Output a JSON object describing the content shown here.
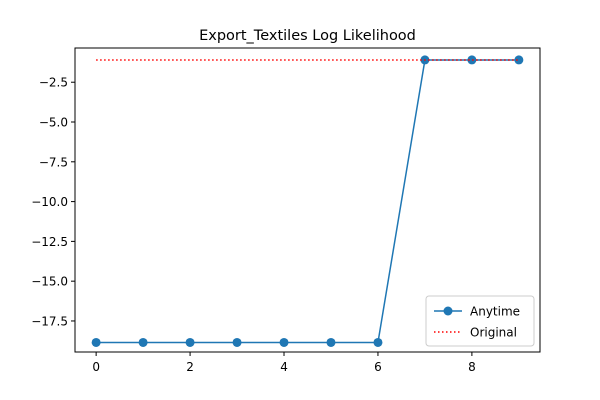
{
  "chart_data": {
    "type": "line",
    "title": "Export_Textiles Log Likelihood",
    "xlabel": "",
    "ylabel": "",
    "x": [
      0,
      1,
      2,
      3,
      4,
      5,
      6,
      7,
      9,
      8
    ],
    "x_sorted": [
      0,
      1,
      2,
      3,
      4,
      5,
      6,
      7,
      8,
      9
    ],
    "xlim": [
      -0.45,
      9.45
    ],
    "ylim": [
      -19.45,
      -0.35
    ],
    "xticks": [
      0,
      2,
      4,
      6,
      8
    ],
    "xtick_labels": [
      "0",
      "2",
      "4",
      "6",
      "8"
    ],
    "yticks": [
      -17.5,
      -15.0,
      -12.5,
      -10.0,
      -7.5,
      -5.0,
      -2.5
    ],
    "ytick_labels": [
      "−17.5",
      "−15.0",
      "−12.5",
      "−10.0",
      "−7.5",
      "−5.0",
      "−2.5"
    ],
    "grid": false,
    "legend_position": "lower-right",
    "series": [
      {
        "name": "Anytime",
        "style": "solid-line-with-circle-markers",
        "color": "#1f77b4",
        "x": [
          0,
          1,
          2,
          3,
          4,
          5,
          6,
          7,
          8,
          9
        ],
        "values": [
          -18.85,
          -18.85,
          -18.85,
          -18.85,
          -18.85,
          -18.85,
          -18.85,
          -1.1,
          -1.1,
          -1.1
        ]
      },
      {
        "name": "Original",
        "style": "dotted-line",
        "color": "#ff0000",
        "x": [
          0,
          9
        ],
        "values": [
          -1.1,
          -1.1
        ]
      }
    ]
  }
}
